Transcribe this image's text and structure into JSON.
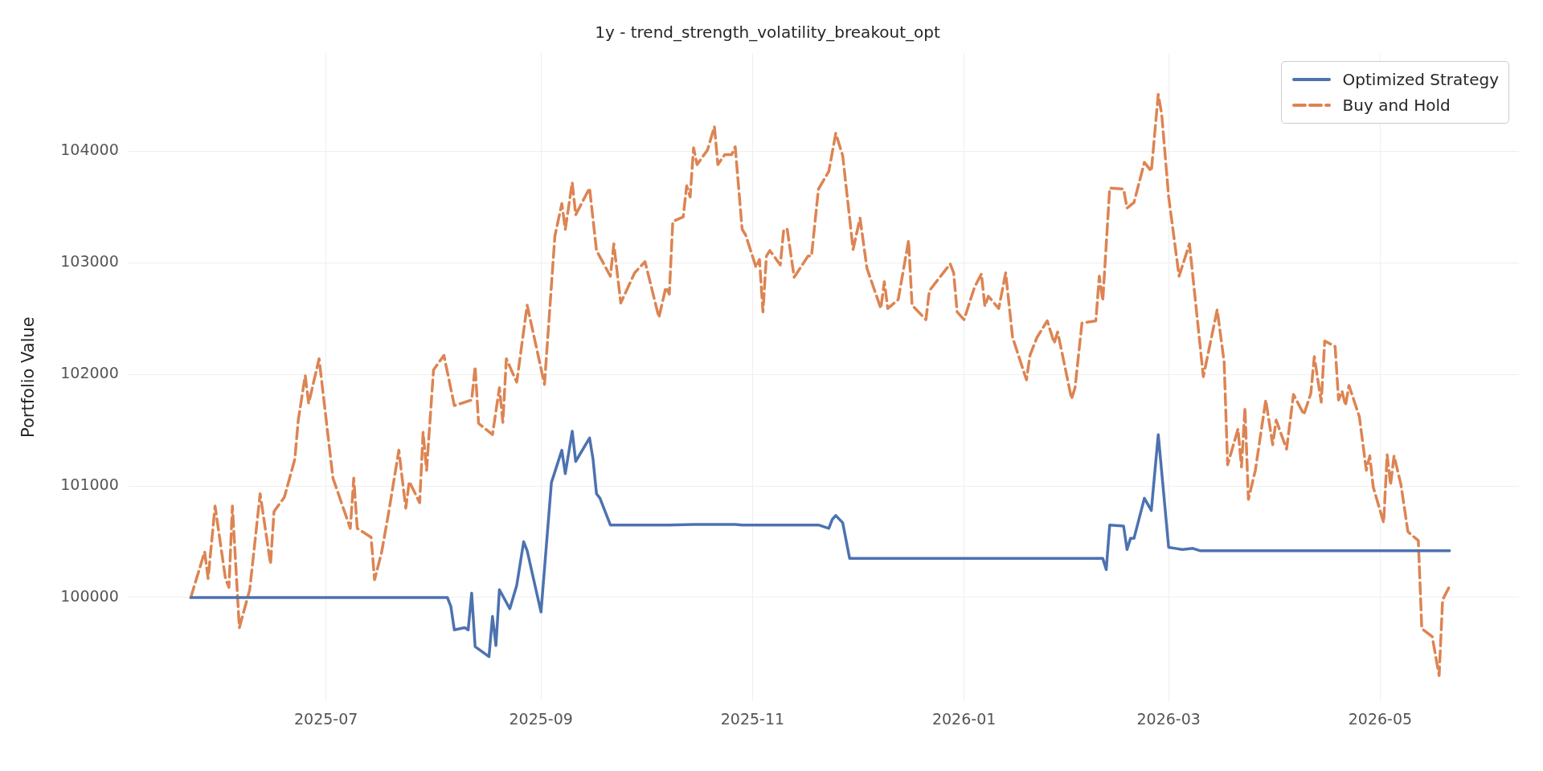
{
  "chart_data": {
    "type": "line",
    "title": "1y - trend_strength_volatility_breakout_opt",
    "ylabel": "Portfolio Value",
    "xlim": [
      "2025-05-05",
      "2026-06-10"
    ],
    "xticks": [
      "2025-07",
      "2025-09",
      "2025-11",
      "2026-01",
      "2026-03",
      "2026-05"
    ],
    "ylim": [
      99070,
      104880
    ],
    "yticks": [
      100000,
      101000,
      102000,
      103000,
      104000
    ],
    "grid": true,
    "legend": "top right",
    "series": [
      {
        "name": "Optimized Strategy",
        "color": "#4c72b0",
        "line_style": "solid",
        "x": [
          "2025-05-23",
          "2025-08-05",
          "2025-08-06",
          "2025-08-07",
          "2025-08-10",
          "2025-08-11",
          "2025-08-12",
          "2025-08-13",
          "2025-08-17",
          "2025-08-18",
          "2025-08-19",
          "2025-08-20",
          "2025-08-23",
          "2025-08-25",
          "2025-08-27",
          "2025-08-28",
          "2025-09-01",
          "2025-09-04",
          "2025-09-07",
          "2025-09-08",
          "2025-09-10",
          "2025-09-11",
          "2025-09-15",
          "2025-09-16",
          "2025-09-17",
          "2025-09-18",
          "2025-09-21",
          "2025-10-08",
          "2025-10-15",
          "2025-10-21",
          "2025-10-27",
          "2025-10-29",
          "2025-11-20",
          "2025-11-23",
          "2025-11-24",
          "2025-11-25",
          "2025-11-27",
          "2025-11-29",
          "2026-02-10",
          "2026-02-11",
          "2026-02-12",
          "2026-02-16",
          "2026-02-17",
          "2026-02-18",
          "2026-02-19",
          "2026-02-22",
          "2026-02-24",
          "2026-02-26",
          "2026-03-01",
          "2026-03-03",
          "2026-03-05",
          "2026-03-08",
          "2026-03-10",
          "2026-05-21"
        ],
        "values": [
          100000,
          100000,
          99920,
          99710,
          99730,
          99710,
          100040,
          99560,
          99470,
          99830,
          99570,
          100070,
          99900,
          100110,
          100500,
          100420,
          99870,
          101030,
          101320,
          101110,
          101490,
          101220,
          101430,
          101240,
          100930,
          100890,
          100650,
          100650,
          100655,
          100655,
          100655,
          100650,
          100650,
          100620,
          100700,
          100735,
          100670,
          100350,
          100350,
          100250,
          100650,
          100640,
          100430,
          100530,
          100530,
          100890,
          100780,
          101460,
          100450,
          100440,
          100430,
          100440,
          100420,
          100420
        ]
      },
      {
        "name": "Buy and Hold",
        "color": "#dd8452",
        "line_style": "dashed",
        "x": [
          "2025-05-23",
          "2025-05-27",
          "2025-05-28",
          "2025-05-30",
          "2025-06-02",
          "2025-06-03",
          "2025-06-04",
          "2025-06-06",
          "2025-06-09",
          "2025-06-12",
          "2025-06-15",
          "2025-06-16",
          "2025-06-19",
          "2025-06-22",
          "2025-06-23",
          "2025-06-25",
          "2025-06-26",
          "2025-06-29",
          "2025-07-03",
          "2025-07-08",
          "2025-07-09",
          "2025-07-10",
          "2025-07-14",
          "2025-07-15",
          "2025-07-17",
          "2025-07-19",
          "2025-07-22",
          "2025-07-24",
          "2025-07-25",
          "2025-07-28",
          "2025-07-29",
          "2025-07-30",
          "2025-08-01",
          "2025-08-04",
          "2025-08-07",
          "2025-08-12",
          "2025-08-13",
          "2025-08-14",
          "2025-08-18",
          "2025-08-20",
          "2025-08-21",
          "2025-08-22",
          "2025-08-25",
          "2025-08-28",
          "2025-09-02",
          "2025-09-05",
          "2025-09-07",
          "2025-09-08",
          "2025-09-10",
          "2025-09-11",
          "2025-09-15",
          "2025-09-17",
          "2025-09-21",
          "2025-09-22",
          "2025-09-24",
          "2025-09-28",
          "2025-10-01",
          "2025-10-05",
          "2025-10-07",
          "2025-10-08",
          "2025-10-09",
          "2025-10-12",
          "2025-10-13",
          "2025-10-14",
          "2025-10-15",
          "2025-10-16",
          "2025-10-19",
          "2025-10-21",
          "2025-10-22",
          "2025-10-24",
          "2025-10-26",
          "2025-10-27",
          "2025-10-29",
          "2025-10-30",
          "2025-11-02",
          "2025-11-03",
          "2025-11-04",
          "2025-11-05",
          "2025-11-06",
          "2025-11-09",
          "2025-11-10",
          "2025-11-11",
          "2025-11-13",
          "2025-11-17",
          "2025-11-18",
          "2025-11-20",
          "2025-11-23",
          "2025-11-25",
          "2025-11-27",
          "2025-11-30",
          "2025-12-02",
          "2025-12-04",
          "2025-12-08",
          "2025-12-09",
          "2025-12-10",
          "2025-12-13",
          "2025-12-16",
          "2025-12-17",
          "2025-12-21",
          "2025-12-22",
          "2025-12-28",
          "2025-12-29",
          "2025-12-30",
          "2026-01-01",
          "2026-01-04",
          "2026-01-06",
          "2026-01-07",
          "2026-01-08",
          "2026-01-11",
          "2026-01-13",
          "2026-01-15",
          "2026-01-19",
          "2026-01-20",
          "2026-01-22",
          "2026-01-25",
          "2026-01-27",
          "2026-01-28",
          "2026-02-01",
          "2026-02-02",
          "2026-02-04",
          "2026-02-08",
          "2026-02-09",
          "2026-02-10",
          "2026-02-12",
          "2026-02-16",
          "2026-02-17",
          "2026-02-19",
          "2026-02-22",
          "2026-02-24",
          "2026-02-26",
          "2026-02-27",
          "2026-03-01",
          "2026-03-04",
          "2026-03-07",
          "2026-03-11",
          "2026-03-15",
          "2026-03-17",
          "2026-03-18",
          "2026-03-21",
          "2026-03-22",
          "2026-03-23",
          "2026-03-24",
          "2026-03-26",
          "2026-03-29",
          "2026-03-31",
          "2026-04-01",
          "2026-04-04",
          "2026-04-06",
          "2026-04-09",
          "2026-04-11",
          "2026-04-12",
          "2026-04-14",
          "2026-04-15",
          "2026-04-18",
          "2026-04-19",
          "2026-04-20",
          "2026-04-21",
          "2026-04-22",
          "2026-04-25",
          "2026-04-27",
          "2026-04-28",
          "2026-04-29",
          "2026-05-02",
          "2026-05-03",
          "2026-05-04",
          "2026-05-05",
          "2026-05-07",
          "2026-05-09",
          "2026-05-12",
          "2026-05-13",
          "2026-05-16",
          "2026-05-18",
          "2026-05-19",
          "2026-05-21"
        ],
        "values": [
          100000,
          100410,
          100170,
          100820,
          100170,
          100090,
          100820,
          99730,
          100070,
          100930,
          100300,
          100770,
          100900,
          101240,
          101590,
          101990,
          101740,
          102140,
          101070,
          100620,
          101070,
          100620,
          100540,
          100160,
          100400,
          100750,
          101320,
          100800,
          101040,
          100850,
          101480,
          101140,
          102040,
          102170,
          101720,
          101770,
          102070,
          101560,
          101460,
          101880,
          101570,
          102140,
          101930,
          102620,
          101910,
          103240,
          103530,
          103300,
          103720,
          103430,
          103670,
          103110,
          102880,
          103170,
          102640,
          102910,
          103010,
          102510,
          102780,
          102720,
          103370,
          103410,
          103690,
          103590,
          104030,
          103880,
          104010,
          104220,
          103880,
          103970,
          103970,
          104040,
          103300,
          103250,
          102960,
          103030,
          102560,
          103060,
          103110,
          102980,
          103300,
          103300,
          102870,
          103060,
          103060,
          103660,
          103820,
          104160,
          103960,
          103120,
          103400,
          102950,
          102590,
          102830,
          102590,
          102670,
          103200,
          102620,
          102490,
          102750,
          102990,
          102910,
          102560,
          102490,
          102780,
          102900,
          102610,
          102700,
          102590,
          102910,
          102330,
          101950,
          102170,
          102330,
          102480,
          102280,
          102380,
          101780,
          101880,
          102460,
          102480,
          102880,
          102660,
          103670,
          103660,
          103490,
          103540,
          103900,
          103820,
          104510,
          104330,
          103590,
          102880,
          103170,
          101980,
          102580,
          102110,
          101190,
          101510,
          101170,
          101700,
          100880,
          101140,
          101770,
          101370,
          101590,
          101330,
          101820,
          101640,
          101830,
          102160,
          101750,
          102300,
          102250,
          101770,
          101850,
          101720,
          101900,
          101620,
          101140,
          101270,
          100990,
          100670,
          101280,
          101010,
          101270,
          101010,
          100590,
          100510,
          99720,
          99650,
          99300,
          99980,
          100100
        ]
      }
    ]
  }
}
